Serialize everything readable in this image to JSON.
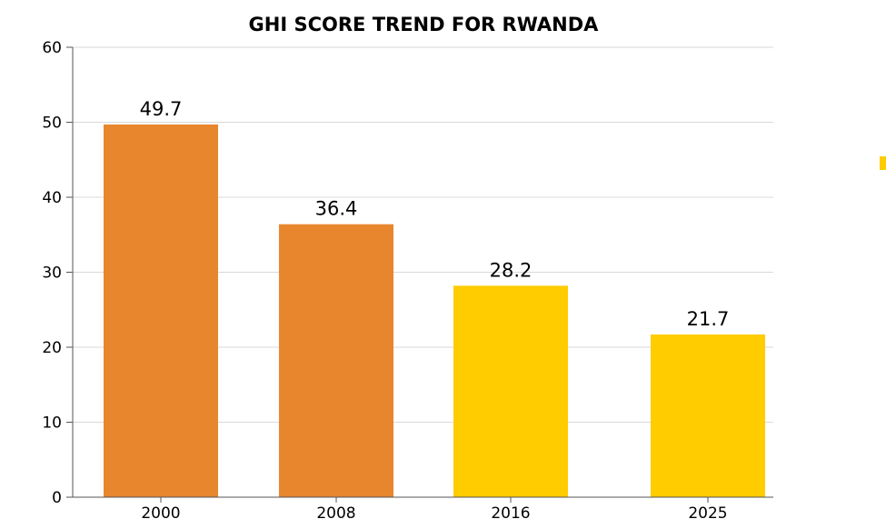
{
  "chart_data": {
    "type": "bar",
    "title": "GHI SCORE TREND FOR RWANDA",
    "categories": [
      "2000",
      "2008",
      "2016",
      "2025"
    ],
    "values": [
      49.7,
      36.4,
      28.2,
      21.7
    ],
    "data_labels": [
      "49.7",
      "36.4",
      "28.2",
      "21.7"
    ],
    "bar_colors": [
      "#E8862E",
      "#E8862E",
      "#FFCC00",
      "#FFCC00"
    ],
    "ylim": [
      0,
      60
    ],
    "yticks": [
      "0",
      "10",
      "20",
      "30",
      "40",
      "50",
      "60"
    ],
    "grid": true,
    "xlabel": "",
    "ylabel": ""
  },
  "legend": {
    "color": "#FFCC00"
  }
}
